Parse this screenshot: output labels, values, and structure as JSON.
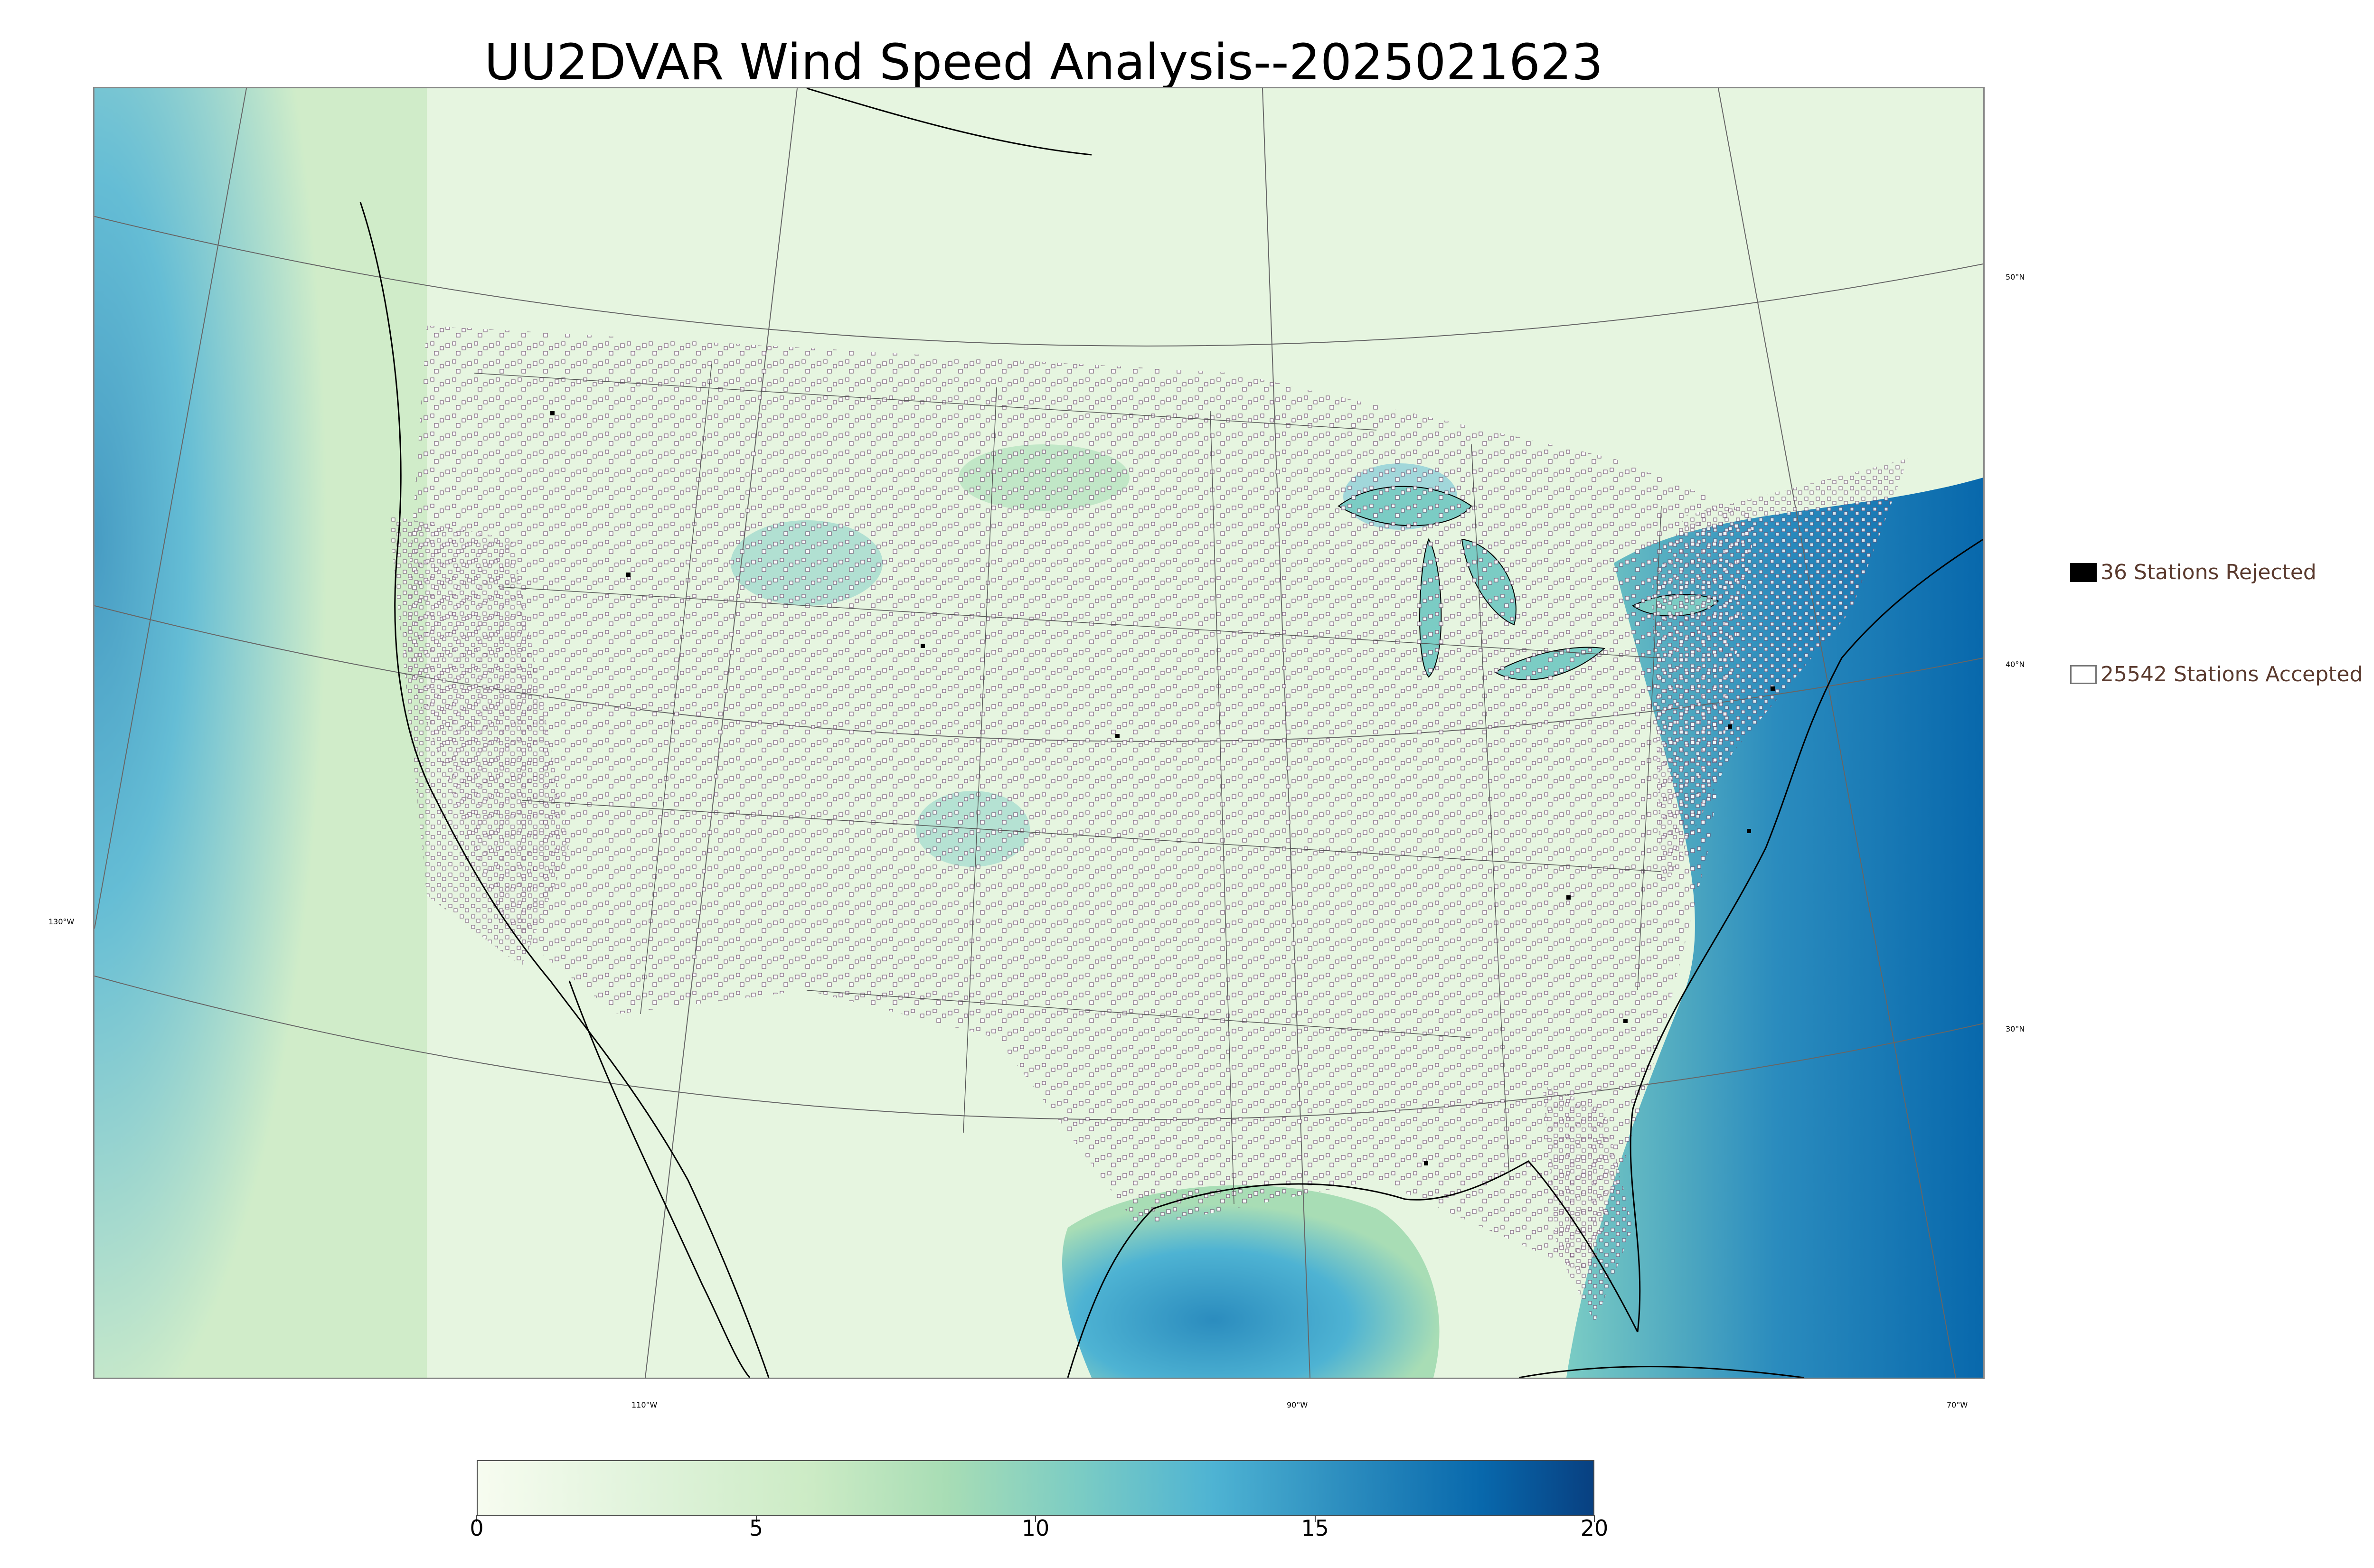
{
  "title": "UU2DVAR Wind Speed Analysis--2025021623",
  "map": {
    "projection": "lambert-conformal",
    "parallels": [
      "50°N",
      "40°N",
      "30°N"
    ],
    "meridians": [
      "130°W",
      "110°W",
      "90°W",
      "70°W"
    ],
    "field": "wind speed",
    "colormap": "GnBu",
    "colors": {
      "calm": "#f7fcf0",
      "light": "#ccebc5",
      "moderate": "#7bccc4",
      "strong": "#2b8cbe",
      "extreme": "#084081",
      "coast": "#000000",
      "border": "#555555"
    }
  },
  "legend": {
    "rejected": {
      "label": "36 Stations Rejected",
      "symbol": "filled-black-square"
    },
    "accepted": {
      "label": "25542 Stations Accepted",
      "symbol": "open-white-square"
    }
  },
  "colorbar": {
    "min": 0,
    "max": 20,
    "ticks": [
      "0",
      "5",
      "10",
      "15",
      "20"
    ]
  }
}
